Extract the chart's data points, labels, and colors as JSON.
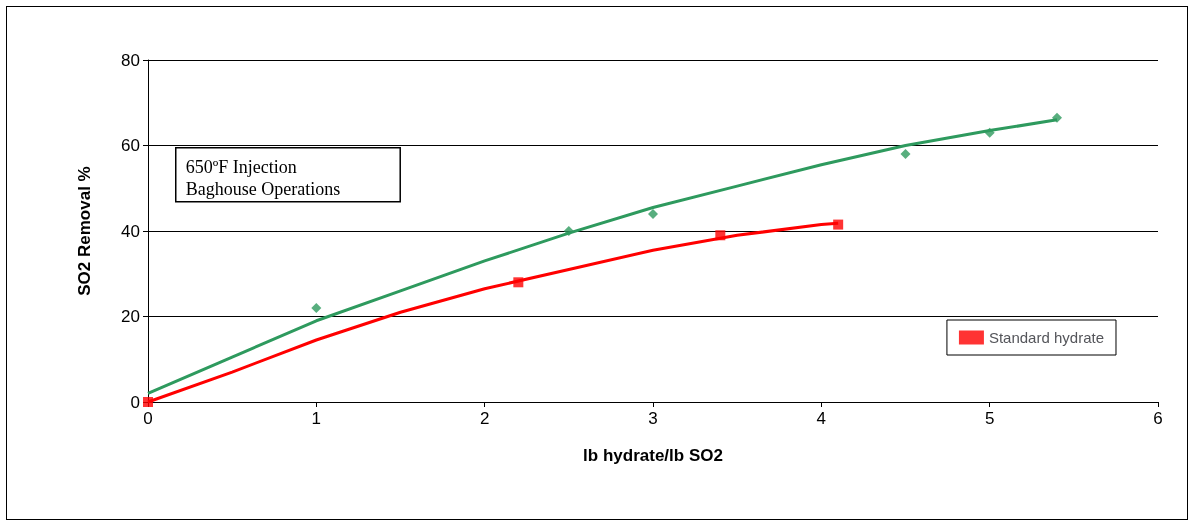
{
  "chart_data": {
    "type": "scatter",
    "xlabel": "lb hydrate/lb SO2",
    "ylabel": "SO2 Removal %",
    "annotations": [
      "650ºF Injection\nBaghouse Operations"
    ],
    "xlim": [
      0,
      6
    ],
    "xticks": [
      0,
      1,
      2,
      3,
      4,
      5,
      6
    ],
    "ylim": [
      0,
      80
    ],
    "yticks": [
      0,
      20,
      40,
      60,
      80
    ],
    "grid": "y",
    "legend": "bottom right",
    "series": [
      {
        "type": "line",
        "color": "#2e9a5e",
        "marker": "none",
        "x": [
          0,
          0.5,
          1,
          1.5,
          2,
          2.5,
          3,
          3.5,
          4,
          4.5,
          5,
          5.4
        ],
        "values": [
          2,
          10.5,
          19,
          26,
          33,
          39.5,
          45.5,
          50.5,
          55.5,
          60,
          63.5,
          66
        ]
      },
      {
        "type": "line",
        "color": "#ff0000",
        "marker": "none",
        "x": [
          0,
          0.5,
          1,
          1.5,
          2,
          2.5,
          3,
          3.5,
          4,
          4.1
        ],
        "values": [
          0,
          7,
          14.5,
          21,
          26.5,
          31,
          35.5,
          39,
          41.5,
          41.8
        ]
      },
      {
        "color": "#2e9a5e",
        "marker": "diamond",
        "x": [
          1,
          2.5,
          3,
          4.5,
          5,
          5.4
        ],
        "values": [
          22,
          40,
          44,
          58,
          63,
          66.5
        ]
      },
      {
        "name": "Standard hydrate",
        "color": "#ff0000",
        "marker": "square",
        "x": [
          0,
          2.2,
          3.4,
          4.1
        ],
        "values": [
          0,
          28,
          39,
          41.5
        ]
      }
    ]
  }
}
